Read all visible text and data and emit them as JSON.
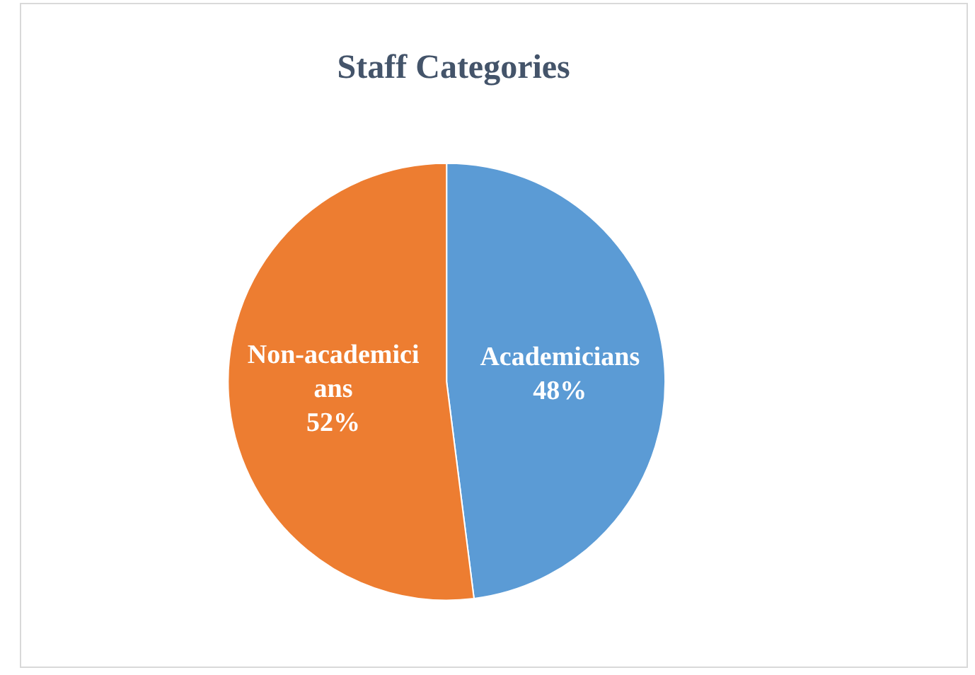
{
  "chart_data": {
    "type": "pie",
    "title": "Staff Categories",
    "categories": [
      "Academicians",
      "Non-academicians"
    ],
    "values": [
      48,
      52
    ],
    "colors": [
      "#5b9bd5",
      "#ed7d31"
    ],
    "value_labels": [
      "48%",
      "52%"
    ],
    "legend": false
  }
}
